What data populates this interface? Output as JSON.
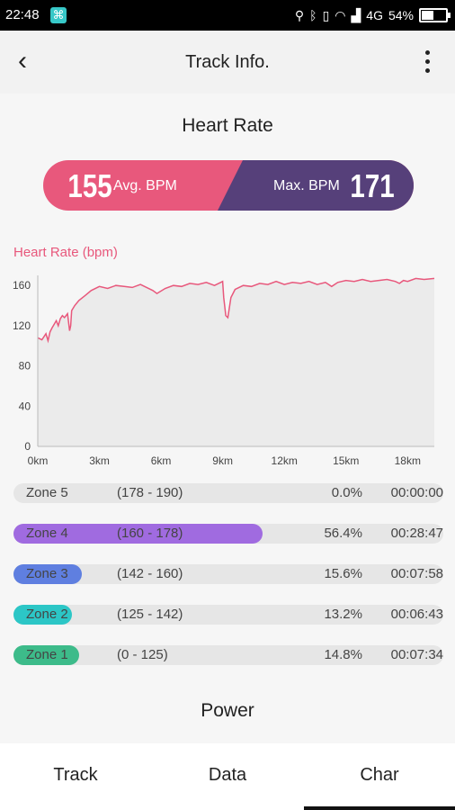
{
  "status_bar": {
    "time": "22:48",
    "network": "4G",
    "battery": "54%",
    "battery_level": 0.54
  },
  "header": {
    "title": "Track Info."
  },
  "heart_rate": {
    "title": "Heart Rate",
    "avg_value": "155",
    "avg_label": "Avg. BPM",
    "max_label": "Max. BPM",
    "max_value": "171",
    "colors": {
      "avg": "#e8587c",
      "max": "#56407a",
      "line": "#e8587c",
      "area": "#ebebeb"
    }
  },
  "chart_data": {
    "type": "area",
    "ylabel": "Heart Rate (bpm)",
    "xlabel": "",
    "x_tick_labels": [
      "0km",
      "3km",
      "6km",
      "9km",
      "12km",
      "15km",
      "18km"
    ],
    "x_ticks": [
      0,
      3,
      6,
      9,
      12,
      15,
      18
    ],
    "y_ticks": [
      0,
      40,
      80,
      120,
      160
    ],
    "xlim": [
      0,
      19.3
    ],
    "ylim": [
      0,
      170
    ],
    "series": [
      {
        "x": [
          0,
          0.2,
          0.4,
          0.5,
          0.6,
          0.7,
          0.9,
          1.0,
          1.1,
          1.2,
          1.3,
          1.45,
          1.55,
          1.6,
          1.65,
          1.8,
          2.0,
          2.3,
          2.6,
          3.0,
          3.4,
          3.8,
          4.2,
          4.6,
          5.0,
          5.3,
          5.6,
          5.8,
          6.2,
          6.6,
          7.0,
          7.4,
          7.8,
          8.2,
          8.6,
          8.9,
          9.0,
          9.05,
          9.15,
          9.25,
          9.4,
          9.6,
          10.0,
          10.4,
          10.8,
          11.2,
          11.6,
          12.0,
          12.4,
          12.8,
          13.2,
          13.6,
          14.0,
          14.3,
          14.6,
          15.0,
          15.4,
          15.8,
          16.2,
          16.6,
          17.0,
          17.4,
          17.6,
          17.8,
          18.0,
          18.4,
          18.8,
          19.3
        ],
        "y": [
          108,
          106,
          112,
          105,
          114,
          118,
          125,
          120,
          127,
          130,
          128,
          132,
          115,
          120,
          135,
          140,
          145,
          150,
          155,
          159,
          157,
          160,
          159,
          158,
          161,
          158,
          155,
          152,
          157,
          160,
          159,
          162,
          161,
          163,
          160,
          163,
          164,
          148,
          130,
          128,
          148,
          156,
          160,
          159,
          162,
          161,
          164,
          161,
          163,
          162,
          164,
          161,
          163,
          159,
          163,
          165,
          164,
          166,
          164,
          165,
          166,
          164,
          162,
          165,
          164,
          167,
          166,
          167
        ]
      }
    ]
  },
  "zones": [
    {
      "name": "Zone 5",
      "range": "(178 - 190)",
      "percent": "0.0%",
      "duration": "00:00:00",
      "fill_fraction": 0.0,
      "color": "#b07be6"
    },
    {
      "name": "Zone 4",
      "range": "(160 - 178)",
      "percent": "56.4%",
      "duration": "00:28:47",
      "fill_fraction": 0.58,
      "color": "#a06be0"
    },
    {
      "name": "Zone 3",
      "range": "(142 - 160)",
      "percent": "15.6%",
      "duration": "00:07:58",
      "fill_fraction": 0.16,
      "color": "#5f7fe0"
    },
    {
      "name": "Zone 2",
      "range": "(125 - 142)",
      "percent": "13.2%",
      "duration": "00:06:43",
      "fill_fraction": 0.135,
      "color": "#2cc6c6"
    },
    {
      "name": "Zone 1",
      "range": "(0 - 125)",
      "percent": "14.8%",
      "duration": "00:07:34",
      "fill_fraction": 0.152,
      "color": "#3dbb8a"
    }
  ],
  "power": {
    "title": "Power"
  },
  "bottom_nav": {
    "tabs": [
      "Track",
      "Data",
      "Char"
    ],
    "active": "Char"
  }
}
